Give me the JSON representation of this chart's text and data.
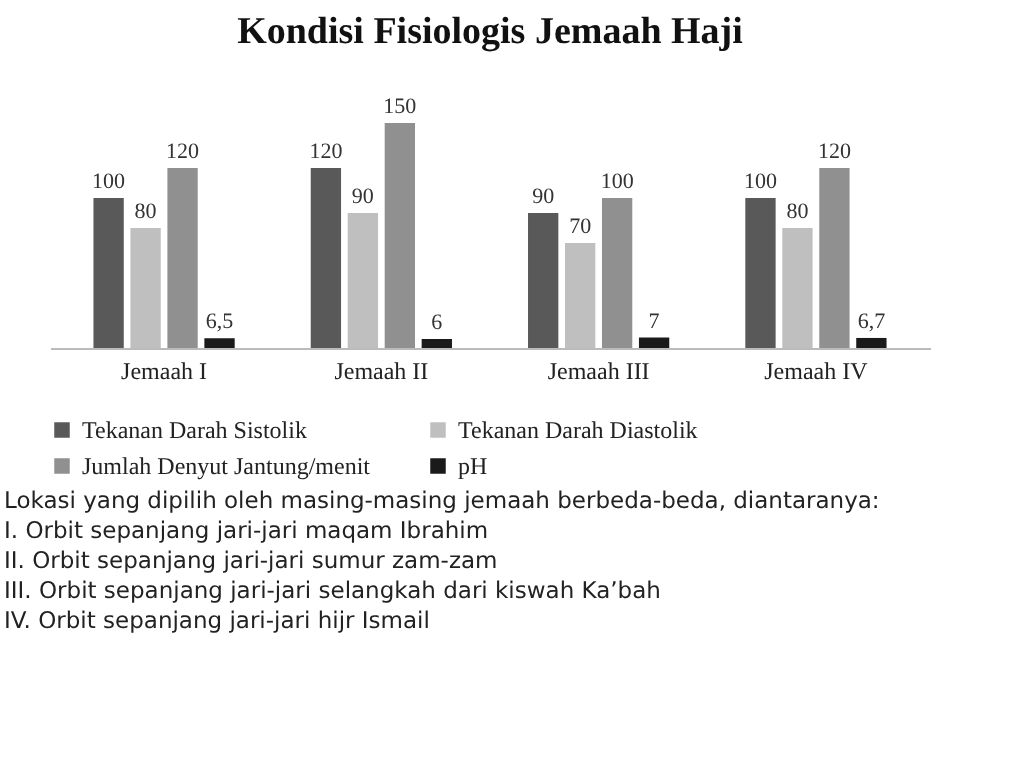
{
  "chart_data": {
    "type": "bar",
    "title": "Kondisi Fisiologis Jemaah Haji",
    "categories": [
      "Jemaah I",
      "Jemaah II",
      "Jemaah III",
      "Jemaah IV"
    ],
    "series": [
      {
        "name": "Tekanan Darah Sistolik",
        "color": "#595959",
        "values": [
          100,
          120,
          90,
          100
        ],
        "value_labels": [
          "100",
          "120",
          "90",
          "100"
        ]
      },
      {
        "name": "Tekanan Darah Diastolik",
        "color": "#bfbfbf",
        "values": [
          80,
          90,
          70,
          80
        ],
        "value_labels": [
          "80",
          "90",
          "70",
          "80"
        ]
      },
      {
        "name": "Jumlah Denyut Jantung/menit",
        "color": "#909090",
        "values": [
          120,
          150,
          100,
          120
        ],
        "value_labels": [
          "120",
          "150",
          "100",
          "120"
        ]
      },
      {
        "name": "pH",
        "color": "#1a1a1a",
        "values": [
          6.5,
          6,
          7,
          6.7
        ],
        "value_labels": [
          "6,5",
          "6",
          "7",
          "6,7"
        ]
      }
    ],
    "legend": "bottom",
    "grid": false,
    "annotations": [
      "Lokasi yang dipilih oleh masing-masing jemaah berbeda-beda, diantaranya:",
      "I. Orbit sepanjang jari-jari maqam Ibrahim",
      "II. Orbit sepanjang jari-jari sumur zam-zam",
      "III. Orbit sepanjang jari-jari selangkah dari kiswah Ka’bah",
      "IV. Orbit sepanjang jari-jari hijr Ismail"
    ]
  }
}
